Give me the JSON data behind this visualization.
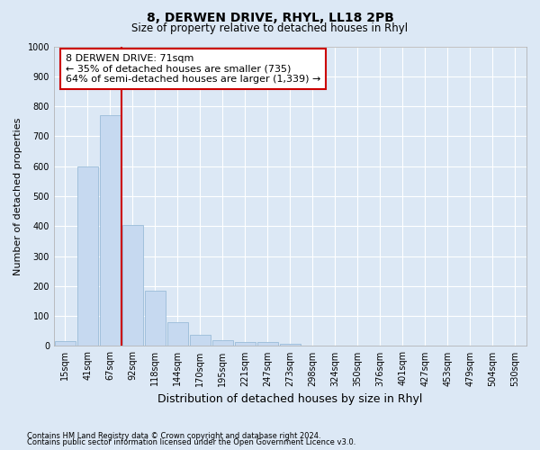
{
  "title": "8, DERWEN DRIVE, RHYL, LL18 2PB",
  "subtitle": "Size of property relative to detached houses in Rhyl",
  "xlabel": "Distribution of detached houses by size in Rhyl",
  "ylabel": "Number of detached properties",
  "bin_labels": [
    "15sqm",
    "41sqm",
    "67sqm",
    "92sqm",
    "118sqm",
    "144sqm",
    "170sqm",
    "195sqm",
    "221sqm",
    "247sqm",
    "273sqm",
    "298sqm",
    "324sqm",
    "350sqm",
    "376sqm",
    "401sqm",
    "427sqm",
    "453sqm",
    "479sqm",
    "504sqm",
    "530sqm"
  ],
  "bar_values": [
    15,
    600,
    770,
    405,
    185,
    78,
    37,
    18,
    12,
    12,
    7,
    0,
    0,
    0,
    0,
    0,
    0,
    0,
    0,
    0,
    0
  ],
  "bar_color": "#c6d9f0",
  "bar_edge_color": "#9abcd8",
  "ylim": [
    0,
    1000
  ],
  "yticks": [
    0,
    100,
    200,
    300,
    400,
    500,
    600,
    700,
    800,
    900,
    1000
  ],
  "vline_x": 2.5,
  "vline_color": "#cc0000",
  "annotation_text": "8 DERWEN DRIVE: 71sqm\n← 35% of detached houses are smaller (735)\n64% of semi-detached houses are larger (1,339) →",
  "annotation_box_facecolor": "#ffffff",
  "annotation_box_edgecolor": "#cc0000",
  "footnote1": "Contains HM Land Registry data © Crown copyright and database right 2024.",
  "footnote2": "Contains public sector information licensed under the Open Government Licence v3.0.",
  "background_color": "#dce8f5",
  "grid_color": "#ffffff",
  "title_fontsize": 10,
  "subtitle_fontsize": 8.5,
  "xlabel_fontsize": 9,
  "ylabel_fontsize": 8,
  "tick_fontsize": 7,
  "annotation_fontsize": 8,
  "footnote_fontsize": 6
}
